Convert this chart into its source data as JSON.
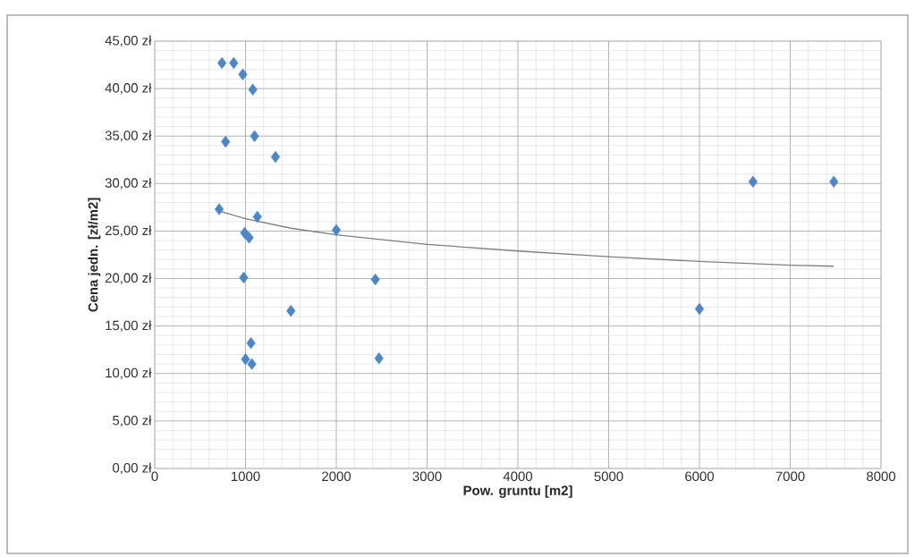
{
  "chart_data": {
    "type": "scatter",
    "xlabel": "Pow. gruntu [m2]",
    "ylabel": "Cena jedn. [zł/m2]",
    "series": [
      {
        "color": "#4a86c8",
        "marker": "diamond",
        "x": [
          740,
          870,
          970,
          1080,
          780,
          1100,
          1330,
          710,
          1130,
          990,
          1040,
          2000,
          980,
          2430,
          1500,
          1060,
          1000,
          1070,
          2470,
          6590,
          7480,
          6000
        ],
        "values": [
          42.7,
          42.7,
          41.5,
          39.9,
          34.4,
          35.0,
          32.8,
          27.3,
          26.5,
          24.8,
          24.3,
          25.1,
          20.1,
          19.9,
          16.6,
          13.2,
          11.5,
          11.0,
          11.6,
          30.2,
          30.2,
          16.8
        ]
      },
      {
        "type": "line",
        "color": "#7f7f7f",
        "marker": "none",
        "line_style": "solid",
        "x": [
          710,
          1000,
          1500,
          2000,
          3000,
          4000,
          5000,
          6000,
          7000,
          7480
        ],
        "values": [
          27.1,
          26.3,
          25.3,
          24.6,
          23.6,
          22.9,
          22.3,
          21.8,
          21.4,
          21.3
        ]
      }
    ],
    "xlim": [
      0,
      8000
    ],
    "xticks": [
      0,
      1000,
      2000,
      3000,
      4000,
      5000,
      6000,
      7000,
      8000
    ],
    "ylim": [
      0,
      45
    ],
    "yticks": [
      {
        "value": 0,
        "label": "0,00 zł"
      },
      {
        "value": 5,
        "label": "5,00 zł"
      },
      {
        "value": 10,
        "label": "10,00 zł"
      },
      {
        "value": 15,
        "label": "15,00 zł"
      },
      {
        "value": 20,
        "label": "20,00 zł"
      },
      {
        "value": 25,
        "label": "25,00 zł"
      },
      {
        "value": 30,
        "label": "30,00 zł"
      },
      {
        "value": 35,
        "label": "35,00 zł"
      },
      {
        "value": 40,
        "label": "40,00 zł"
      },
      {
        "value": 45,
        "label": "45,00 zł"
      }
    ],
    "grid": true
  }
}
